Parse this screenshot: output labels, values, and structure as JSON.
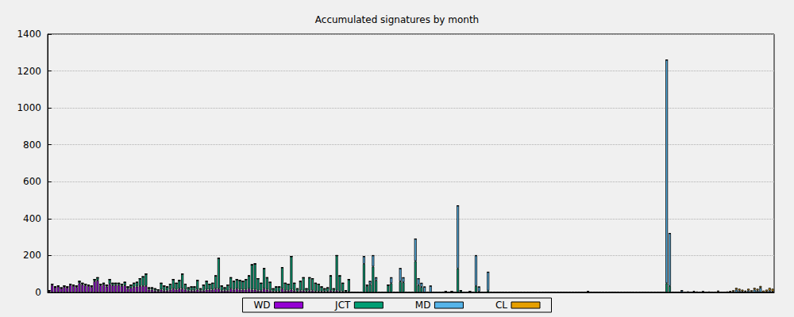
{
  "chart_data": {
    "type": "bar",
    "title": "Accumulated signatures by month",
    "stacked": true,
    "grid": true,
    "legend": "bottom",
    "tick_labels": "y",
    "ylim": [
      0,
      1400
    ],
    "yticks": [
      0,
      200,
      400,
      600,
      800,
      1000,
      1200,
      1400
    ],
    "categories": [
      null,
      null,
      null,
      null,
      null,
      null,
      null,
      null,
      null,
      null,
      null,
      null,
      null,
      null,
      null,
      null,
      null,
      null,
      null,
      null,
      null,
      null,
      null,
      null,
      null,
      null,
      null,
      null,
      null,
      null,
      null,
      null,
      null,
      null,
      null,
      null,
      null,
      null,
      null,
      null,
      null,
      null,
      null,
      null,
      null,
      null,
      null,
      null,
      null,
      null,
      null,
      null,
      null,
      null,
      null,
      null,
      null,
      null,
      null,
      null,
      null,
      null,
      null,
      null,
      null,
      null,
      null,
      null,
      null,
      null,
      null,
      null,
      null,
      null,
      null,
      null,
      null,
      null,
      null,
      null,
      null,
      null,
      null,
      null,
      null,
      null,
      null,
      null,
      null,
      null,
      null,
      null,
      null,
      null,
      null,
      null,
      null,
      null,
      null,
      null,
      null,
      null,
      null,
      null,
      null,
      null,
      null,
      null,
      null,
      null,
      null,
      null,
      null,
      null,
      null,
      null,
      null,
      null,
      null,
      null,
      null,
      null,
      null,
      null,
      null,
      null,
      null,
      null,
      null,
      null,
      null,
      null,
      null,
      null,
      null,
      null,
      null,
      null,
      null,
      null,
      null,
      null,
      null,
      null,
      null,
      null,
      null,
      null,
      null,
      null,
      null,
      null,
      null,
      null,
      null,
      null,
      null,
      null,
      null,
      null,
      null,
      null,
      null,
      null,
      null,
      null,
      null,
      null,
      null,
      null,
      null,
      null,
      null,
      null,
      null,
      null,
      null,
      null,
      null,
      null,
      null,
      null,
      null,
      null,
      null,
      null,
      null,
      null,
      null,
      null,
      null,
      null,
      null,
      null,
      null,
      null,
      null,
      null,
      null,
      null,
      null,
      null,
      null,
      null,
      null,
      null,
      null,
      null,
      null,
      null,
      null,
      null,
      null,
      null,
      null,
      null,
      null,
      null,
      null,
      null,
      null,
      null,
      null,
      null,
      null,
      null,
      null,
      null,
      null,
      null,
      null,
      null,
      null,
      null,
      null,
      null,
      null,
      null,
      null,
      null
    ],
    "series": [
      {
        "name": "WD",
        "color": "#9400d3",
        "values": [
          8,
          40,
          28,
          32,
          22,
          30,
          26,
          40,
          36,
          30,
          50,
          42,
          38,
          35,
          30,
          60,
          65,
          38,
          42,
          32,
          45,
          38,
          40,
          40,
          35,
          38,
          20,
          25,
          30,
          32,
          35,
          35,
          35,
          15,
          15,
          10,
          8,
          15,
          10,
          10,
          15,
          20,
          15,
          20,
          20,
          15,
          10,
          10,
          10,
          15,
          10,
          10,
          15,
          15,
          15,
          20,
          20,
          10,
          10,
          10,
          20,
          15,
          20,
          15,
          15,
          15,
          20,
          15,
          15,
          10,
          10,
          20,
          15,
          10,
          5,
          5,
          5,
          20,
          10,
          10,
          15,
          10,
          5,
          10,
          10,
          5,
          10,
          10,
          5,
          5,
          5,
          5,
          5,
          10,
          5,
          10,
          5,
          5,
          0,
          5,
          0,
          0,
          0,
          0,
          0,
          0,
          0,
          0,
          0,
          0,
          0,
          0,
          0,
          0,
          0,
          0,
          0,
          0,
          0,
          0,
          0,
          0,
          0,
          0,
          0,
          0,
          0,
          0,
          0,
          0,
          0,
          0,
          0,
          0,
          0,
          0,
          0,
          0,
          0,
          0,
          0,
          0,
          0,
          0,
          0,
          0,
          0,
          0,
          0,
          0,
          0,
          0,
          0,
          0,
          0,
          0,
          0,
          0,
          0,
          0,
          0,
          0,
          0,
          0,
          0,
          0,
          0,
          0,
          0,
          0,
          0,
          0,
          0,
          0,
          0,
          0,
          0,
          0,
          0,
          0,
          0,
          0,
          0,
          0,
          0,
          0,
          0,
          0,
          0,
          0,
          0,
          0,
          0,
          0,
          0,
          0,
          0,
          0,
          0,
          0,
          0,
          0,
          0,
          0,
          0,
          0,
          0,
          0,
          0,
          0,
          0,
          0,
          0,
          0,
          0,
          0,
          0,
          0,
          0,
          0,
          0,
          0,
          0,
          0,
          0,
          0,
          0,
          0,
          0,
          0,
          0,
          0,
          0,
          0,
          0,
          0,
          0,
          0,
          0,
          0
        ]
      },
      {
        "name": "JCT",
        "color": "#009e73",
        "values": [
          2,
          5,
          2,
          3,
          3,
          5,
          4,
          5,
          4,
          5,
          10,
          8,
          7,
          5,
          5,
          10,
          15,
          7,
          8,
          8,
          25,
          12,
          10,
          10,
          10,
          17,
          10,
          15,
          20,
          23,
          40,
          50,
          65,
          10,
          10,
          10,
          7,
          35,
          25,
          20,
          30,
          50,
          35,
          45,
          80,
          30,
          15,
          20,
          20,
          50,
          10,
          30,
          45,
          30,
          35,
          70,
          165,
          25,
          15,
          30,
          60,
          45,
          50,
          50,
          45,
          55,
          70,
          135,
          140,
          65,
          40,
          110,
          65,
          45,
          15,
          25,
          25,
          115,
          40,
          35,
          180,
          40,
          15,
          50,
          70,
          15,
          70,
          65,
          45,
          40,
          25,
          15,
          20,
          80,
          15,
          190,
          85,
          45,
          10,
          65,
          0,
          0,
          0,
          0,
          155,
          35,
          45,
          140,
          65,
          0,
          0,
          0,
          40,
          50,
          0,
          0,
          60,
          55,
          0,
          0,
          0,
          170,
          40,
          30,
          0,
          0,
          0,
          0,
          0,
          0,
          0,
          5,
          0,
          5,
          0,
          130,
          10,
          0,
          0,
          5,
          0,
          35,
          5,
          0,
          0,
          10,
          0,
          0,
          0,
          0,
          0,
          0,
          0,
          0,
          0,
          0,
          0,
          0,
          0,
          0,
          0,
          0,
          0,
          0,
          0,
          0,
          2,
          0,
          0,
          0,
          0,
          0,
          0,
          0,
          0,
          0,
          0,
          0,
          5,
          0,
          0,
          0,
          0,
          0,
          0,
          0,
          0,
          0,
          0,
          0,
          0,
          0,
          0,
          0,
          0,
          0,
          0,
          0,
          0,
          0,
          0,
          0,
          0,
          0,
          50,
          35,
          0,
          0,
          0,
          0,
          0,
          0,
          0,
          0,
          0,
          0,
          0,
          0,
          0,
          0,
          0,
          0,
          0,
          0,
          0,
          0,
          0,
          0,
          0,
          0,
          0,
          0,
          0,
          0,
          0,
          0,
          0,
          0,
          0,
          0
        ]
      },
      {
        "name": "MD",
        "color": "#56b4e9",
        "values": [
          0,
          0,
          0,
          0,
          0,
          0,
          0,
          0,
          0,
          0,
          0,
          0,
          0,
          0,
          0,
          0,
          0,
          0,
          0,
          0,
          0,
          0,
          0,
          0,
          0,
          0,
          0,
          0,
          0,
          0,
          0,
          0,
          0,
          0,
          0,
          0,
          0,
          0,
          0,
          0,
          0,
          0,
          0,
          0,
          0,
          0,
          0,
          0,
          0,
          0,
          0,
          0,
          0,
          0,
          0,
          0,
          0,
          0,
          0,
          0,
          0,
          0,
          0,
          0,
          0,
          0,
          0,
          0,
          0,
          0,
          0,
          0,
          0,
          0,
          0,
          0,
          0,
          0,
          0,
          0,
          0,
          0,
          0,
          0,
          0,
          0,
          0,
          0,
          0,
          0,
          0,
          0,
          0,
          0,
          0,
          0,
          0,
          0,
          0,
          0,
          0,
          0,
          0,
          0,
          40,
          5,
          15,
          60,
          15,
          0,
          0,
          0,
          0,
          30,
          0,
          0,
          70,
          25,
          0,
          0,
          0,
          120,
          35,
          20,
          30,
          0,
          35,
          0,
          0,
          0,
          0,
          0,
          0,
          0,
          0,
          340,
          0,
          0,
          0,
          0,
          0,
          165,
          25,
          0,
          0,
          100,
          0,
          0,
          0,
          0,
          0,
          0,
          0,
          0,
          0,
          0,
          0,
          0,
          0,
          0,
          0,
          0,
          0,
          0,
          0,
          0,
          0,
          0,
          0,
          0,
          0,
          0,
          0,
          0,
          0,
          0,
          0,
          0,
          0,
          0,
          0,
          0,
          0,
          0,
          0,
          0,
          0,
          0,
          0,
          0,
          0,
          0,
          0,
          0,
          0,
          0,
          0,
          0,
          0,
          0,
          0,
          0,
          0,
          0,
          1210,
          285,
          0,
          0,
          0,
          10,
          0,
          3,
          0,
          5,
          0,
          0,
          5,
          0,
          0,
          0,
          0,
          5,
          0,
          0,
          0,
          3,
          5,
          15,
          10,
          5,
          5,
          10,
          5,
          15,
          10,
          25,
          0,
          5,
          10,
          5
        ]
      },
      {
        "name": "CL",
        "color": "#e69f00",
        "values": [
          0,
          0,
          0,
          0,
          0,
          0,
          0,
          0,
          0,
          0,
          0,
          0,
          0,
          0,
          0,
          0,
          0,
          0,
          0,
          0,
          0,
          0,
          0,
          0,
          0,
          0,
          0,
          0,
          0,
          0,
          0,
          0,
          0,
          0,
          0,
          0,
          0,
          0,
          0,
          0,
          0,
          0,
          0,
          0,
          0,
          0,
          0,
          0,
          0,
          0,
          0,
          0,
          0,
          0,
          0,
          0,
          0,
          0,
          0,
          0,
          0,
          0,
          0,
          0,
          0,
          0,
          0,
          0,
          0,
          0,
          0,
          0,
          0,
          0,
          0,
          0,
          0,
          0,
          0,
          0,
          0,
          0,
          0,
          0,
          0,
          0,
          0,
          0,
          0,
          0,
          0,
          0,
          0,
          0,
          0,
          0,
          0,
          0,
          0,
          0,
          0,
          0,
          0,
          0,
          0,
          0,
          0,
          0,
          0,
          0,
          0,
          0,
          0,
          0,
          0,
          0,
          0,
          0,
          0,
          0,
          0,
          0,
          0,
          0,
          0,
          0,
          0,
          0,
          0,
          0,
          0,
          0,
          0,
          0,
          0,
          0,
          0,
          0,
          0,
          0,
          0,
          0,
          0,
          0,
          0,
          0,
          0,
          0,
          0,
          0,
          0,
          0,
          0,
          0,
          0,
          0,
          0,
          0,
          0,
          0,
          0,
          0,
          0,
          0,
          0,
          0,
          0,
          0,
          0,
          0,
          0,
          0,
          0,
          0,
          0,
          0,
          0,
          0,
          0,
          0,
          0,
          0,
          0,
          0,
          0,
          0,
          0,
          0,
          0,
          0,
          0,
          0,
          0,
          0,
          0,
          0,
          0,
          0,
          0,
          0,
          0,
          0,
          0,
          0,
          0,
          0,
          0,
          0,
          0,
          0,
          0,
          0,
          0,
          3,
          5,
          0,
          0,
          0,
          5,
          0,
          0,
          5,
          0,
          0,
          5,
          5,
          7,
          10,
          10,
          10,
          5,
          10,
          7,
          10,
          10,
          10,
          10,
          10,
          15,
          15
        ]
      }
    ]
  }
}
